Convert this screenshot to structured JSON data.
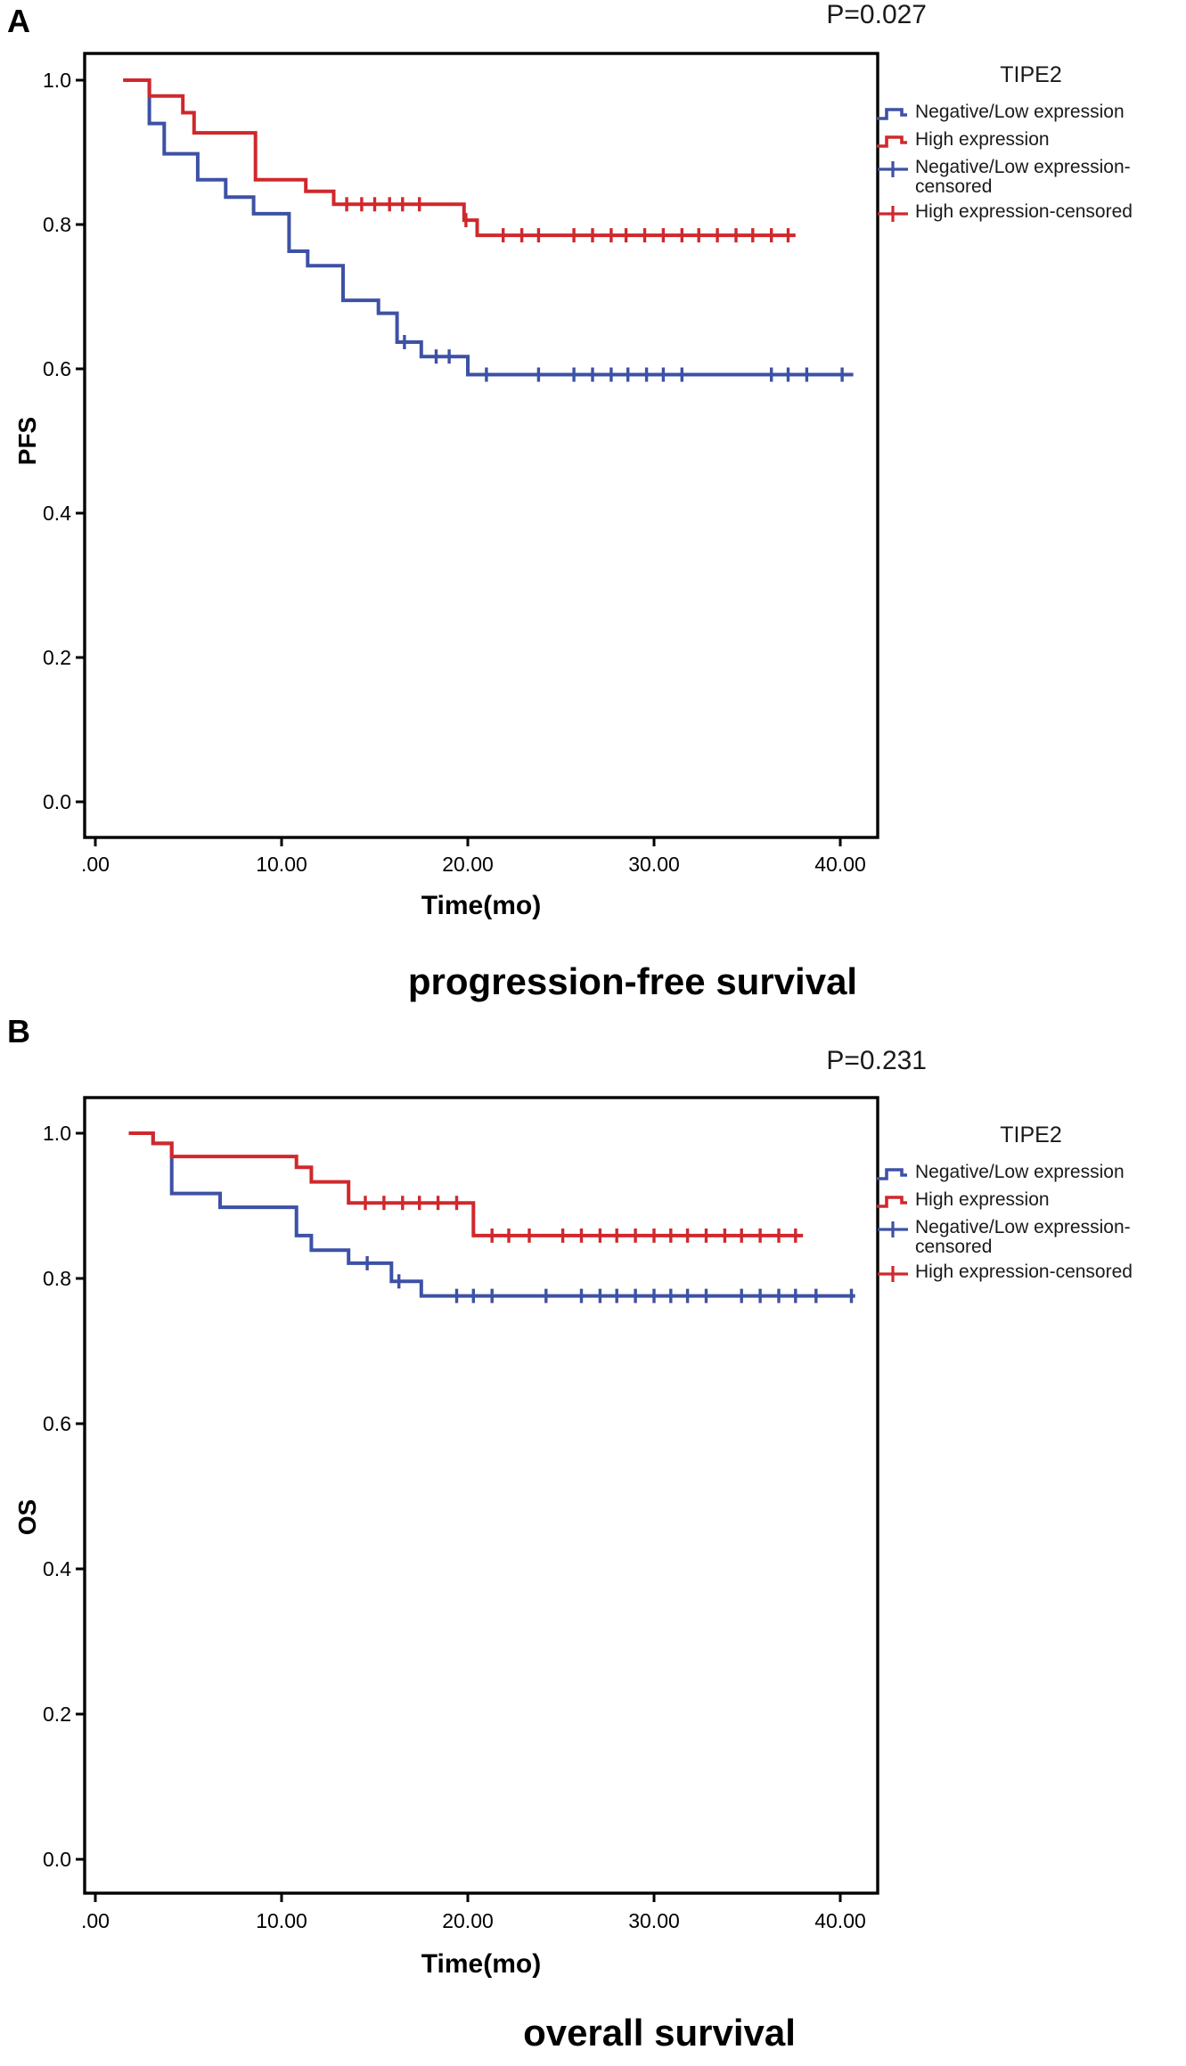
{
  "figure": {
    "panel_letters": [
      "A",
      "B"
    ],
    "colors": {
      "blue": "#3D51A5",
      "red": "#D0282C",
      "axis": "#000000"
    }
  },
  "chart_data": [
    {
      "type": "line",
      "subtype": "kaplan-meier-step",
      "title": "progression-free survival",
      "p_value": "P=0.027",
      "xlabel": "Time(mo)",
      "ylabel": "PFS",
      "xlim": [
        -0.6,
        42.0
      ],
      "ylim": [
        -0.05,
        1.05
      ],
      "grid": false,
      "legend_position": "right",
      "x_ticks": [
        0,
        10,
        20,
        30,
        40
      ],
      "x_tick_labels": [
        ".00",
        "10.00",
        "20.00",
        "30.00",
        "40.00"
      ],
      "y_ticks": [
        1.0,
        0.8,
        0.6,
        0.4,
        0.2,
        0.0
      ],
      "y_tick_labels": [
        "1.0",
        "0.8",
        "0.6",
        "0.4",
        "0.2",
        "0.0"
      ],
      "legend": {
        "title": "TIPE2",
        "entries": [
          {
            "label": "Negative/Low expression",
            "marker": "step-line",
            "color_key": "blue"
          },
          {
            "label": "High expression",
            "marker": "step-line",
            "color_key": "red"
          },
          {
            "label": "Negative/Low expression-censored",
            "marker": "plus",
            "color_key": "blue"
          },
          {
            "label": "High expression-censored",
            "marker": "plus",
            "color_key": "red"
          }
        ]
      },
      "series": [
        {
          "name": "Negative/Low expression",
          "slug": "negative-low",
          "color_key": "blue",
          "start": 1.5,
          "end": 40.7,
          "steps": [
            [
              2.9,
              0.94
            ],
            [
              3.7,
              0.898
            ],
            [
              5.5,
              0.862
            ],
            [
              7.0,
              0.838
            ],
            [
              8.5,
              0.815
            ],
            [
              10.4,
              0.763
            ],
            [
              11.4,
              0.743
            ],
            [
              13.3,
              0.695
            ],
            [
              15.2,
              0.677
            ],
            [
              16.2,
              0.637
            ],
            [
              17.5,
              0.617
            ],
            [
              20.0,
              0.592
            ]
          ],
          "censored": [
            [
              16.6,
              0.637
            ],
            [
              18.3,
              0.617
            ],
            [
              19.0,
              0.617
            ],
            [
              21.0,
              0.592
            ],
            [
              23.8,
              0.592
            ],
            [
              25.7,
              0.592
            ],
            [
              26.7,
              0.592
            ],
            [
              27.7,
              0.592
            ],
            [
              28.6,
              0.592
            ],
            [
              29.6,
              0.592
            ],
            [
              30.5,
              0.592
            ],
            [
              31.5,
              0.592
            ],
            [
              36.3,
              0.592
            ],
            [
              37.2,
              0.592
            ],
            [
              38.2,
              0.592
            ],
            [
              40.1,
              0.592
            ]
          ]
        },
        {
          "name": "High expression",
          "slug": "high",
          "color_key": "red",
          "start": 1.5,
          "end": 37.6,
          "steps": [
            [
              2.9,
              0.978
            ],
            [
              4.7,
              0.955
            ],
            [
              5.3,
              0.927
            ],
            [
              8.6,
              0.862
            ],
            [
              11.3,
              0.846
            ],
            [
              12.8,
              0.828
            ],
            [
              19.8,
              0.806
            ],
            [
              20.5,
              0.785
            ]
          ],
          "censored": [
            [
              13.5,
              0.828
            ],
            [
              14.3,
              0.828
            ],
            [
              15.0,
              0.828
            ],
            [
              15.8,
              0.828
            ],
            [
              16.5,
              0.828
            ],
            [
              17.4,
              0.828
            ],
            [
              19.9,
              0.806
            ],
            [
              21.9,
              0.785
            ],
            [
              22.9,
              0.785
            ],
            [
              23.8,
              0.785
            ],
            [
              25.7,
              0.785
            ],
            [
              26.7,
              0.785
            ],
            [
              27.7,
              0.785
            ],
            [
              28.5,
              0.785
            ],
            [
              29.5,
              0.785
            ],
            [
              30.5,
              0.785
            ],
            [
              31.5,
              0.785
            ],
            [
              32.4,
              0.785
            ],
            [
              33.4,
              0.785
            ],
            [
              34.4,
              0.785
            ],
            [
              35.3,
              0.785
            ],
            [
              36.3,
              0.785
            ],
            [
              37.2,
              0.785
            ]
          ]
        }
      ]
    },
    {
      "type": "line",
      "subtype": "kaplan-meier-step",
      "title": "overall survival",
      "p_value": "P=0.231",
      "xlabel": "Time(mo)",
      "ylabel": "OS",
      "xlim": [
        -0.6,
        42.0
      ],
      "ylim": [
        -0.05,
        1.05
      ],
      "grid": false,
      "legend_position": "right",
      "x_ticks": [
        0,
        10,
        20,
        30,
        40
      ],
      "x_tick_labels": [
        ".00",
        "10.00",
        "20.00",
        "30.00",
        "40.00"
      ],
      "y_ticks": [
        1.0,
        0.8,
        0.6,
        0.4,
        0.2,
        0.0
      ],
      "y_tick_labels": [
        "1.0",
        "0.8",
        "0.6",
        "0.4",
        "0.2",
        "0.0"
      ],
      "legend": {
        "title": "TIPE2",
        "entries": [
          {
            "label": "Negative/Low expression",
            "marker": "step-line",
            "color_key": "blue"
          },
          {
            "label": "High expression",
            "marker": "step-line",
            "color_key": "red"
          },
          {
            "label": "Negative/Low expression-censored",
            "marker": "plus",
            "color_key": "blue"
          },
          {
            "label": "High expression-censored",
            "marker": "plus",
            "color_key": "red"
          }
        ]
      },
      "series": [
        {
          "name": "Negative/Low expression",
          "slug": "negative-low",
          "color_key": "blue",
          "start": 1.8,
          "end": 40.8,
          "steps": [
            [
              3.1,
              0.986
            ],
            [
              4.1,
              0.917
            ],
            [
              6.7,
              0.898
            ],
            [
              10.8,
              0.859
            ],
            [
              11.6,
              0.839
            ],
            [
              13.6,
              0.821
            ],
            [
              15.9,
              0.796
            ],
            [
              17.5,
              0.776
            ]
          ],
          "censored": [
            [
              14.6,
              0.821
            ],
            [
              16.3,
              0.796
            ],
            [
              19.4,
              0.776
            ],
            [
              20.3,
              0.776
            ],
            [
              21.3,
              0.776
            ],
            [
              24.2,
              0.776
            ],
            [
              26.1,
              0.776
            ],
            [
              27.1,
              0.776
            ],
            [
              28.0,
              0.776
            ],
            [
              29.0,
              0.776
            ],
            [
              30.0,
              0.776
            ],
            [
              30.9,
              0.776
            ],
            [
              31.8,
              0.776
            ],
            [
              32.8,
              0.776
            ],
            [
              34.7,
              0.776
            ],
            [
              35.7,
              0.776
            ],
            [
              36.7,
              0.776
            ],
            [
              37.6,
              0.776
            ],
            [
              38.7,
              0.776
            ],
            [
              40.6,
              0.776
            ]
          ]
        },
        {
          "name": "High expression",
          "slug": "high",
          "color_key": "red",
          "start": 1.8,
          "end": 38.0,
          "steps": [
            [
              3.1,
              0.986
            ],
            [
              4.1,
              0.968
            ],
            [
              10.8,
              0.953
            ],
            [
              11.6,
              0.933
            ],
            [
              13.6,
              0.904
            ],
            [
              20.3,
              0.859
            ]
          ],
          "censored": [
            [
              14.5,
              0.904
            ],
            [
              15.5,
              0.904
            ],
            [
              16.5,
              0.904
            ],
            [
              17.4,
              0.904
            ],
            [
              18.4,
              0.904
            ],
            [
              19.4,
              0.904
            ],
            [
              21.3,
              0.859
            ],
            [
              22.2,
              0.859
            ],
            [
              23.3,
              0.859
            ],
            [
              25.1,
              0.859
            ],
            [
              26.1,
              0.859
            ],
            [
              27.1,
              0.859
            ],
            [
              28.0,
              0.859
            ],
            [
              29.0,
              0.859
            ],
            [
              30.0,
              0.859
            ],
            [
              30.9,
              0.859
            ],
            [
              31.8,
              0.859
            ],
            [
              32.8,
              0.859
            ],
            [
              33.8,
              0.859
            ],
            [
              34.7,
              0.859
            ],
            [
              35.7,
              0.859
            ],
            [
              36.7,
              0.859
            ],
            [
              37.6,
              0.859
            ]
          ]
        }
      ]
    }
  ]
}
